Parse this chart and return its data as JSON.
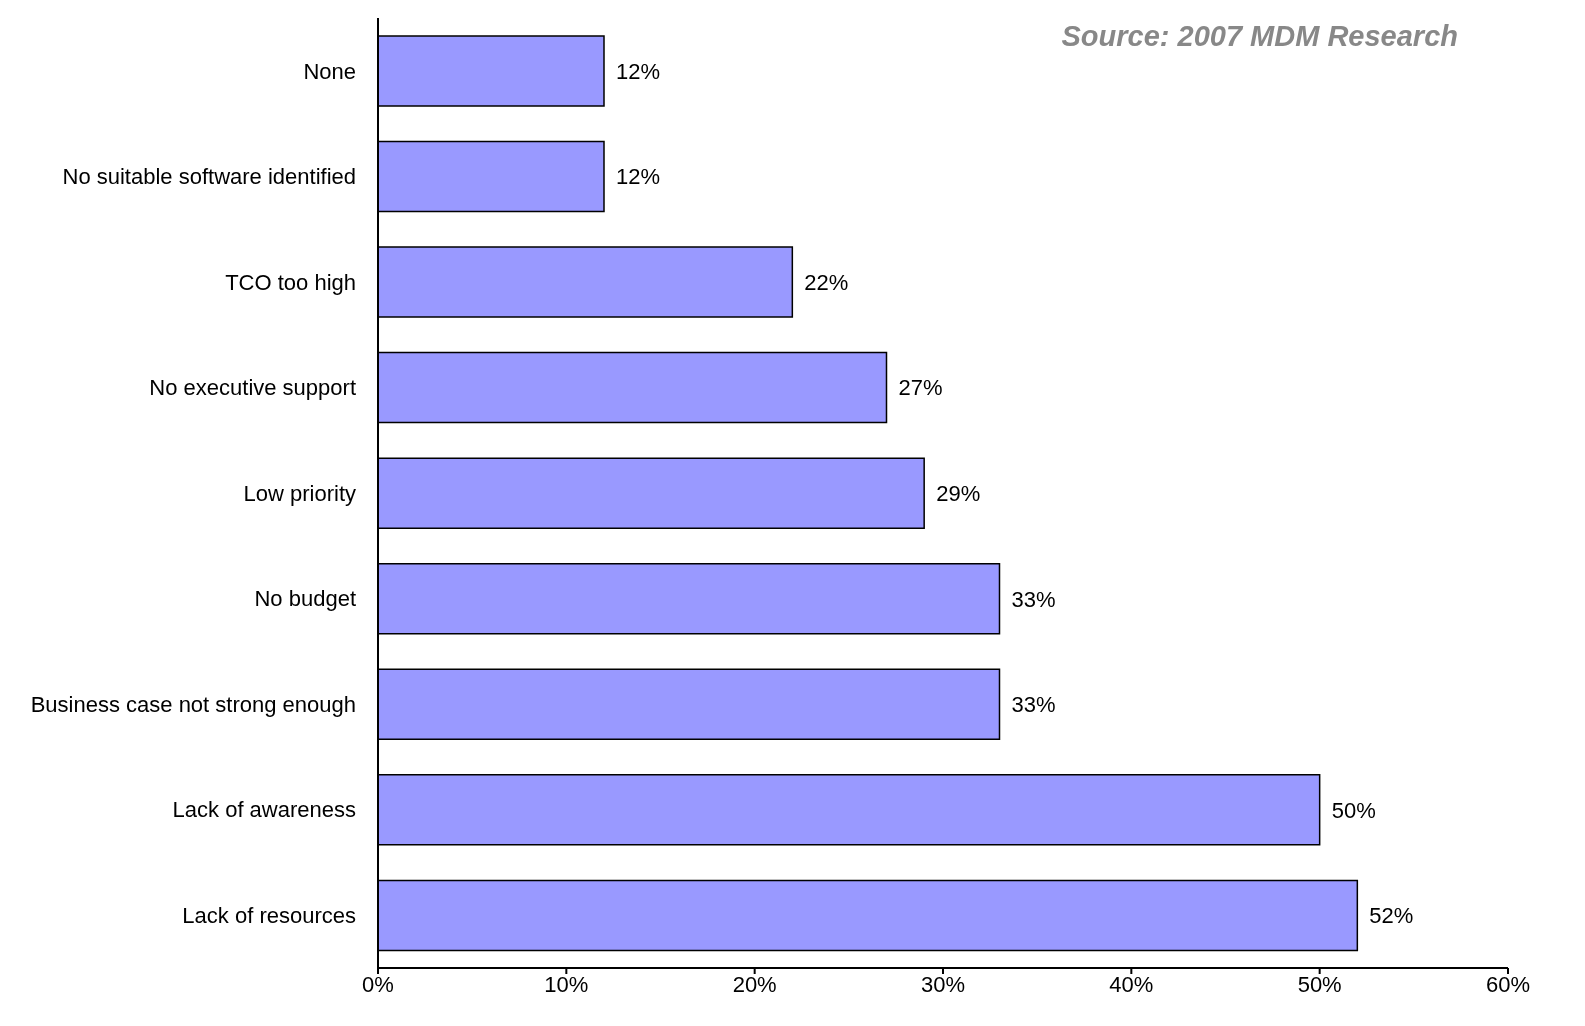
{
  "chart_data": {
    "type": "bar",
    "orientation": "horizontal",
    "annotations": [
      "Source: 2007 MDM Research"
    ],
    "categories": [
      "None",
      "No suitable software identified",
      "TCO too high",
      "No executive support",
      "Low priority",
      "No budget",
      "Business case not strong enough",
      "Lack of awareness",
      "Lack of resources"
    ],
    "values": [
      12,
      12,
      22,
      27,
      29,
      33,
      33,
      50,
      52
    ],
    "value_labels": [
      "12%",
      "12%",
      "22%",
      "27%",
      "29%",
      "33%",
      "33%",
      "50%",
      "52%"
    ],
    "color": "#9999ff",
    "xlim": [
      0,
      60
    ],
    "xticks": [
      {
        "value": 0,
        "label": "0%"
      },
      {
        "value": 10,
        "label": "10%"
      },
      {
        "value": 20,
        "label": "20%"
      },
      {
        "value": 30,
        "label": "30%"
      },
      {
        "value": 40,
        "label": "40%"
      },
      {
        "value": 50,
        "label": "50%"
      },
      {
        "value": 60,
        "label": "60%"
      }
    ],
    "grid": false,
    "legend": false
  }
}
